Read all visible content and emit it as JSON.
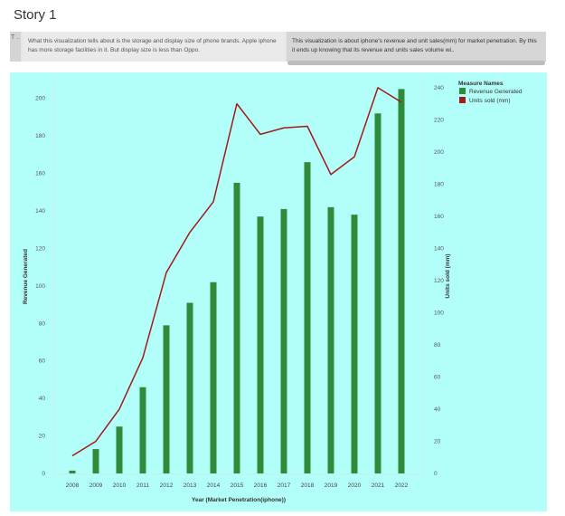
{
  "story": {
    "title": "Story 1",
    "nav_arrow": "T\n..",
    "points": [
      "What this visualization tells about is the storage and display size of phone brands. Apple iphone has more storage facilities in it. But display size is less than Oppo.",
      "This visualization is about iphone's revenue and unit sales(mm) for market penetration. By this it ends up knowing that its revenue and units sales volume wi.."
    ]
  },
  "colors": {
    "background": "#b2fff9",
    "bar": "#2e8b3a",
    "line": "#a31a1a"
  },
  "legend": {
    "title": "Measure Names",
    "items": [
      "Revenue Generated",
      "Units sold (mm)"
    ]
  },
  "chart_data": {
    "type": "bar",
    "xlabel": "Year (Market Penetration(iphone))",
    "ylabel": "Revenue Generated",
    "y2label": "Units sold (mm)",
    "ylim": [
      0,
      210
    ],
    "y2lim": [
      0,
      245
    ],
    "yticks": [
      0,
      20,
      40,
      60,
      80,
      100,
      120,
      140,
      160,
      180,
      200
    ],
    "y2ticks": [
      0,
      20,
      40,
      60,
      80,
      100,
      120,
      140,
      160,
      180,
      200,
      220,
      240
    ],
    "categories": [
      "2008",
      "2009",
      "2010",
      "2011",
      "2012",
      "2013",
      "2014",
      "2015",
      "2016",
      "2017",
      "2018",
      "2019",
      "2020",
      "2021",
      "2022"
    ],
    "series": [
      {
        "name": "Revenue Generated",
        "type": "bar",
        "axis": "left",
        "values": [
          1.5,
          13,
          25,
          46,
          79,
          91,
          102,
          155,
          137,
          141,
          166,
          142,
          138,
          192,
          205
        ]
      },
      {
        "name": "Units sold (mm)",
        "type": "line",
        "axis": "right",
        "values": [
          11,
          20,
          40,
          72,
          125,
          150,
          169,
          230,
          211,
          215,
          216,
          186,
          197,
          240,
          231
        ]
      }
    ],
    "legend_position": "top-right",
    "grid": false
  }
}
